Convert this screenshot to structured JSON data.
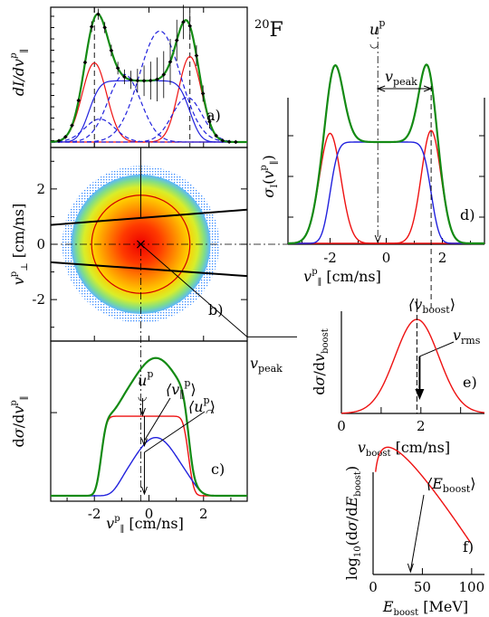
{
  "title": "20F",
  "title_parts": {
    "mass": "20",
    "element": "F"
  },
  "colors": {
    "green": "#138a13",
    "blue": "#2222dd",
    "red": "#ee1111",
    "black": "#000000"
  },
  "chart_data": [
    {
      "id": "a",
      "type": "line",
      "tag": "a)",
      "ylabel": "dI/dv∥ᵖ",
      "xlim": [
        -3.6,
        3.6
      ],
      "guides_x": [
        -2.0,
        1.5
      ],
      "series": [
        {
          "color": "green",
          "dash": "solid",
          "kind": "total"
        },
        {
          "color": "red",
          "dash": "solid",
          "kind": "gauss",
          "mu": -2.0,
          "sigma": 0.45,
          "amp": 0.62
        },
        {
          "color": "red",
          "dash": "solid",
          "kind": "gauss",
          "mu": 1.5,
          "sigma": 0.42,
          "amp": 0.67
        },
        {
          "color": "blue",
          "dash": "solid",
          "kind": "plateau",
          "from": -2.2,
          "to": 1.5,
          "width": 0.45,
          "amp": 0.48
        },
        {
          "color": "blue",
          "dash": "dashed",
          "kind": "gauss",
          "mu": -1.8,
          "sigma": 0.55,
          "amp": 0.18
        },
        {
          "color": "blue",
          "dash": "dashed",
          "kind": "gauss",
          "mu": -0.9,
          "sigma": 0.6,
          "amp": 0.53
        },
        {
          "color": "blue",
          "dash": "dashed",
          "kind": "gauss",
          "mu": 0.4,
          "sigma": 0.75,
          "amp": 0.87
        },
        {
          "color": "blue",
          "dash": "dashed",
          "kind": "gauss",
          "mu": 1.4,
          "sigma": 0.55,
          "amp": 0.35
        }
      ]
    },
    {
      "id": "b",
      "type": "heatmap",
      "tag": "b)",
      "ylabel": "v⊥ᵖ [cm/ns]",
      "xlim": [
        -3.6,
        3.6
      ],
      "ylim": [
        -3.5,
        3.5
      ],
      "yticks": [
        -2,
        0,
        2
      ],
      "ytick_labels": [
        "-2",
        "0",
        "2"
      ],
      "center": [
        -0.3,
        0
      ],
      "ring_radius": 1.8,
      "lines": [
        {
          "x": [
            -3.6,
            3.6
          ],
          "y": [
            0.7,
            1.25
          ]
        },
        {
          "x": [
            -3.6,
            3.6
          ],
          "y": [
            -0.65,
            -1.15
          ]
        }
      ],
      "annotation": "v_peak",
      "annotation_text": {
        "base": "v",
        "sub": "peak"
      }
    },
    {
      "id": "c",
      "type": "line",
      "tag": "c)",
      "ylabel": "dσ/dv∥ᵖ",
      "xlabel": "v∥ᵖ [cm/ns]",
      "xlim": [
        -3.6,
        3.6
      ],
      "xticks": [
        -2,
        0,
        2
      ],
      "xtick_labels": [
        "-2",
        "0",
        "2"
      ],
      "guide_x": -0.3,
      "series": [
        {
          "color": "green",
          "kind": "total"
        },
        {
          "color": "red",
          "kind": "plateau",
          "from": -1.75,
          "to": 1.45,
          "width": 0.22,
          "amp": 0.56
        },
        {
          "color": "blue",
          "kind": "gauss-tail",
          "mu": 0.25,
          "sigma": 0.85,
          "amp": 0.41
        }
      ],
      "annotations": {
        "u_circ": {
          "base": "u",
          "sup": "p"
        },
        "mean_v": {
          "base": "⟨v",
          "sub": "∥",
          "sup": "p",
          "end": "⟩"
        },
        "mean_u": {
          "base": "⟨u",
          "sup": "p",
          "end": "⟩"
        }
      }
    },
    {
      "id": "d",
      "type": "line",
      "tag": "d)",
      "ylabel": "σI(v∥ᵖ)",
      "xlabel": "v∥ᵖ [cm/ns]",
      "xlim": [
        -3.5,
        3.5
      ],
      "xticks": [
        -2,
        0,
        2
      ],
      "xtick_labels": [
        "-2",
        "0",
        "2"
      ],
      "guides_x": [
        -0.3,
        1.6
      ],
      "series": [
        {
          "color": "green",
          "kind": "total"
        },
        {
          "color": "red",
          "kind": "gauss",
          "mu": -2.0,
          "sigma": 0.38,
          "amp": 0.76
        },
        {
          "color": "red",
          "kind": "gauss",
          "mu": 1.6,
          "sigma": 0.35,
          "amp": 0.78
        },
        {
          "color": "blue",
          "kind": "plateau",
          "from": -2.0,
          "to": 1.6,
          "width": 0.32,
          "amp": 0.7
        }
      ],
      "annotations": {
        "u_circ": {
          "base": "u",
          "sup": "p"
        },
        "v_peak": {
          "base": "v",
          "sub": "peak"
        }
      }
    },
    {
      "id": "e",
      "type": "line",
      "tag": "e)",
      "ylabel": "dσ/dv_boost",
      "xlabel": "v_boost [cm/ns]",
      "xlim": [
        0,
        3.6
      ],
      "xticks": [
        0,
        1,
        2,
        3
      ],
      "xtick_labels": [
        "0",
        "",
        "2",
        ""
      ],
      "series": [
        {
          "color": "red",
          "kind": "gauss",
          "mu": 1.9,
          "sigma": 0.55,
          "amp": 0.92
        }
      ],
      "mean": 1.9,
      "annotations": {
        "mean": {
          "base": "⟨v",
          "sub": "boost",
          "end": "⟩"
        },
        "rms": {
          "base": "v",
          "sub": "rms"
        }
      }
    },
    {
      "id": "f",
      "type": "line",
      "tag": "f)",
      "ylabel": "log10(dσ/dE_boost)",
      "xlabel": "E_boost [MeV]",
      "xlim": [
        0,
        113
      ],
      "xticks": [
        0,
        50,
        100
      ],
      "xtick_labels": [
        "0",
        "50",
        "100"
      ],
      "series": [
        {
          "color": "red",
          "kind": "skew"
        }
      ],
      "mean": 38,
      "annotations": {
        "mean": {
          "base": "⟨E",
          "sub": "boost",
          "end": "⟩"
        }
      }
    }
  ]
}
